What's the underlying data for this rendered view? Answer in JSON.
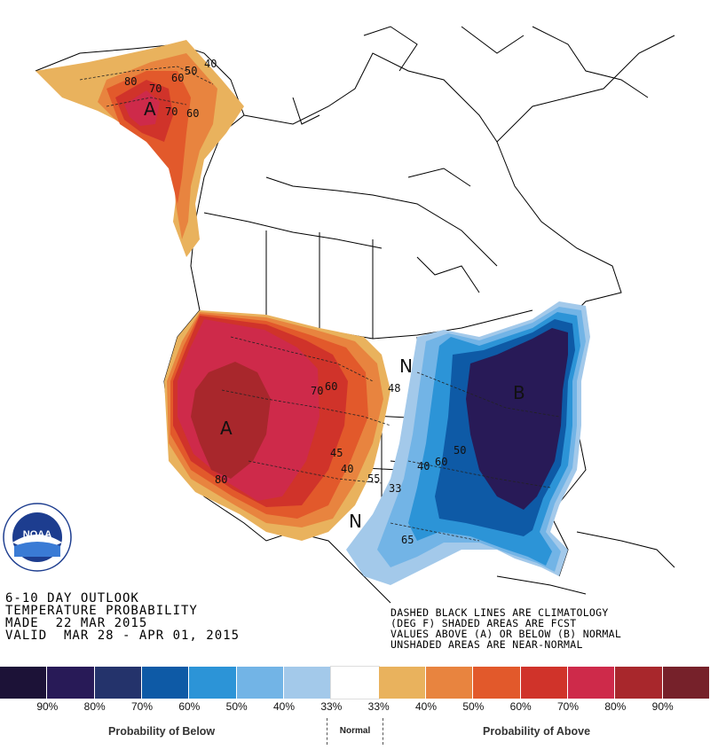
{
  "title_lines": [
    "6-10 DAY OUTLOOK",
    "TEMPERATURE PROBABILITY",
    "MADE  22 MAR 2015",
    "VALID  MAR 28 - APR 01, 2015"
  ],
  "notes": [
    "DASHED BLACK LINES ARE CLIMATOLOGY",
    "(DEG F) SHADED AREAS ARE FCST",
    "VALUES ABOVE (A) OR BELOW (B) NORMAL",
    "UNSHADED AREAS ARE NEAR-NORMAL"
  ],
  "logo": {
    "text": "NOAA",
    "ring_text": "NATIONAL OCEANIC AND ATMOSPHERIC ADMINISTRATION · U.S. DEPARTMENT OF COMMERCE"
  },
  "map_labels": {
    "alaska_A": "A",
    "west_A": "A",
    "east_B": "B",
    "north_N": "N",
    "south_N": "N",
    "ak_50": "50",
    "ak_40": "40",
    "ak_70": "70",
    "ak_60": "60",
    "ak_60b": "60",
    "ak_70b": "70",
    "ak_80": "80",
    "w_70": "70",
    "w_60": "60",
    "w_80": "80",
    "w_45": "45",
    "w_40": "40",
    "w_55": "55",
    "w_48": "48",
    "e_50": "50",
    "e_40": "40",
    "e_33": "33",
    "e_60": "60",
    "e_65": "65"
  },
  "legend": {
    "colors": [
      "#1c1237",
      "#281a57",
      "#24336b",
      "#0e5aa6",
      "#2c94d7",
      "#72b4e6",
      "#a3c9ea",
      "#ffffff",
      "#e9b25d",
      "#e8843f",
      "#e2592b",
      "#d0332a",
      "#ce2a4a",
      "#a8272c",
      "#76212a"
    ],
    "labels": [
      "90%",
      "80%",
      "70%",
      "60%",
      "50%",
      "40%",
      "33%",
      "33%",
      "40%",
      "50%",
      "60%",
      "70%",
      "80%",
      "90%"
    ],
    "below_caption": "Probability of Below",
    "normal_caption": "Normal",
    "above_caption": "Probability of Above"
  }
}
